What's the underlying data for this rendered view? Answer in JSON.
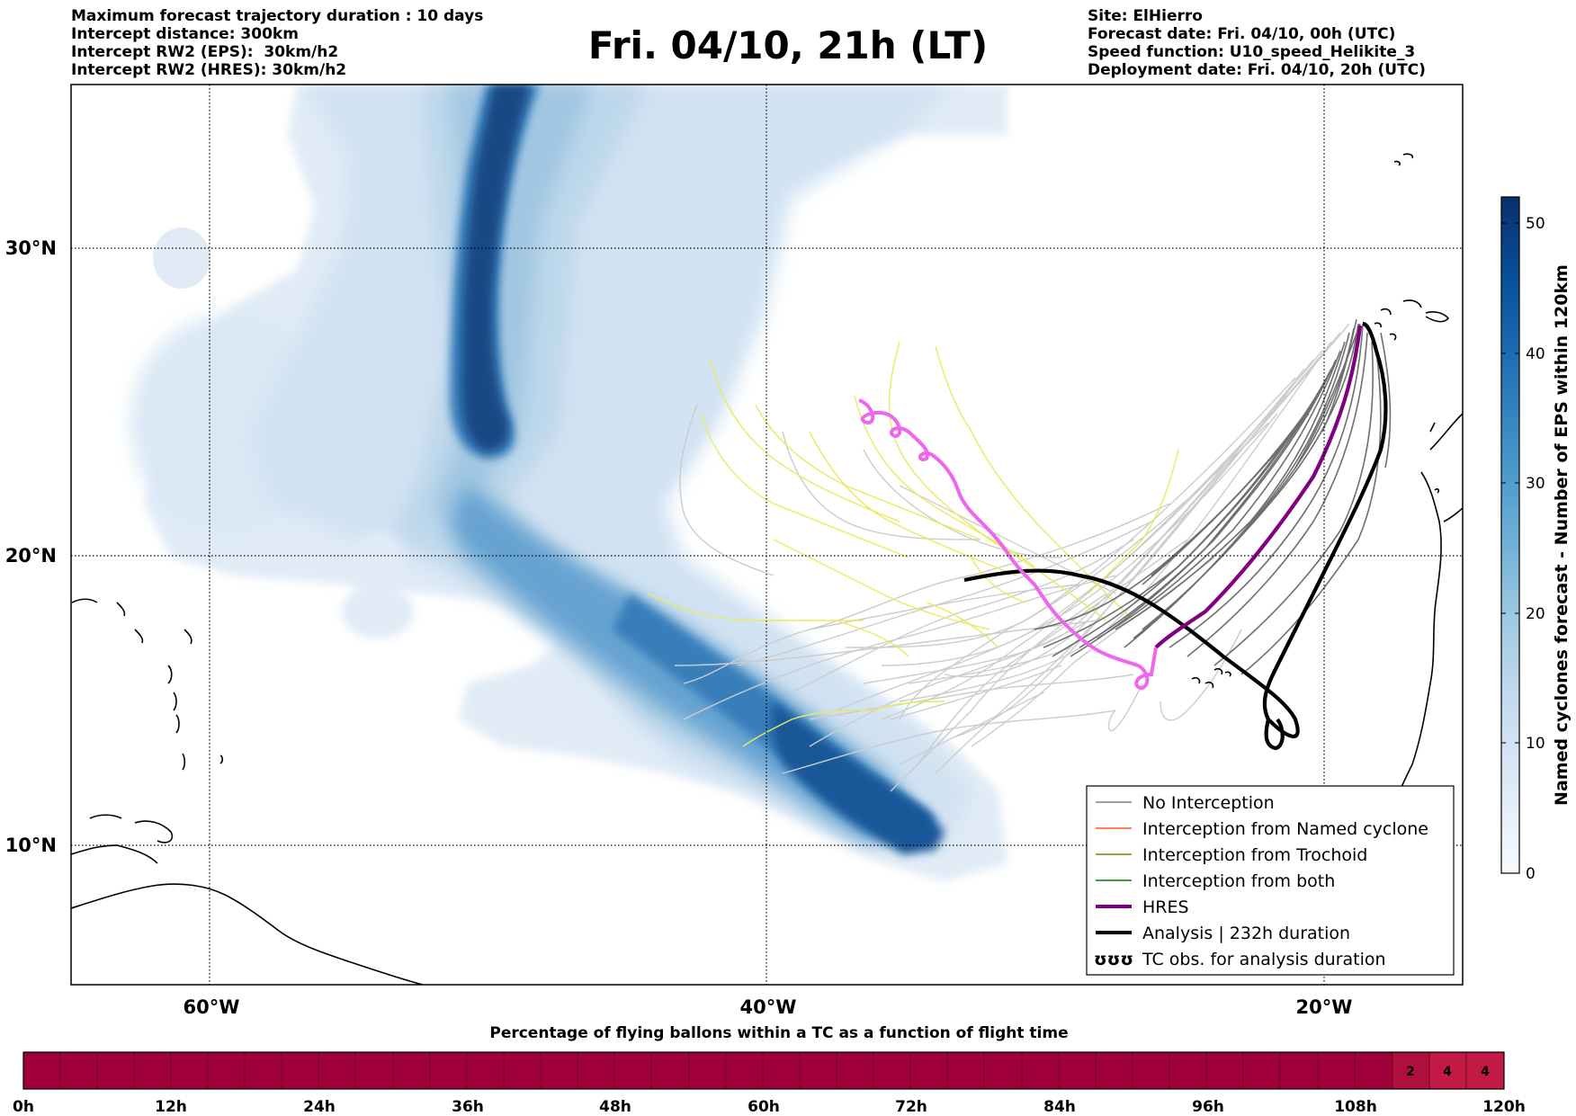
{
  "header": {
    "left": [
      "Maximum forecast trajectory duration : 10 days",
      "Intercept distance: 300km",
      "Intercept RW2 (EPS):  30km/h2",
      "Intercept RW2 (HRES): 30km/h2"
    ],
    "title": "Fri. 04/10, 21h (LT)",
    "right": [
      "Site: ElHierro",
      "Forecast date: Fri. 04/10, 00h (UTC)",
      "Speed function: U10_speed_Helikite_3",
      "Deployment date: Fri. 04/10, 20h (UTC)"
    ]
  },
  "map": {
    "lat_labels": [
      "30°N",
      "20°N",
      "10°N"
    ],
    "lon_labels": [
      "60°W",
      "40°W",
      "20°W"
    ],
    "lat_values": [
      30,
      20,
      10
    ],
    "lon_values": [
      -60,
      -40,
      -20
    ],
    "extent": {
      "lon_min": -65,
      "lon_max": -15,
      "lat_min": 5.4,
      "lat_max": 34.7
    }
  },
  "colorbar": {
    "label": "Named cyclones forecast - Number of EPS within 120km",
    "ticks": [
      "50",
      "40",
      "30",
      "20",
      "10",
      "0"
    ],
    "tick_values": [
      50,
      40,
      30,
      20,
      10,
      0
    ],
    "range": [
      0,
      52
    ],
    "colors": [
      "#f7fbff",
      "#deebf7",
      "#c6dbef",
      "#9ecae1",
      "#6baed6",
      "#4292c6",
      "#2171b5",
      "#08519c",
      "#08306b"
    ]
  },
  "legend": {
    "items": [
      {
        "label": "No Interception",
        "color": "#808080"
      },
      {
        "label": "Interception from Named cyclone",
        "color": "#ff5a1f"
      },
      {
        "label": "Interception from Trochoid",
        "color": "#808000"
      },
      {
        "label": "Interception from both",
        "color": "#008000"
      },
      {
        "label": "HRES",
        "color": "#800080"
      },
      {
        "label": "Analysis | 232h duration",
        "color": "#000000"
      },
      {
        "label": "TC obs. for analysis duration",
        "symbol": "ʊʊʊ"
      }
    ]
  },
  "timebar": {
    "title": "Percentage of flying ballons within a TC as a function of flight time",
    "ticks": [
      "0h",
      "12h",
      "24h",
      "36h",
      "48h",
      "60h",
      "72h",
      "84h",
      "96h",
      "108h",
      "120h"
    ],
    "base_color": "#a0003a",
    "cells": [
      {
        "value": "2",
        "color": "#b0103e"
      },
      {
        "value": "4",
        "color": "#c21a45"
      },
      {
        "value": "4",
        "color": "#c21a45"
      }
    ]
  }
}
